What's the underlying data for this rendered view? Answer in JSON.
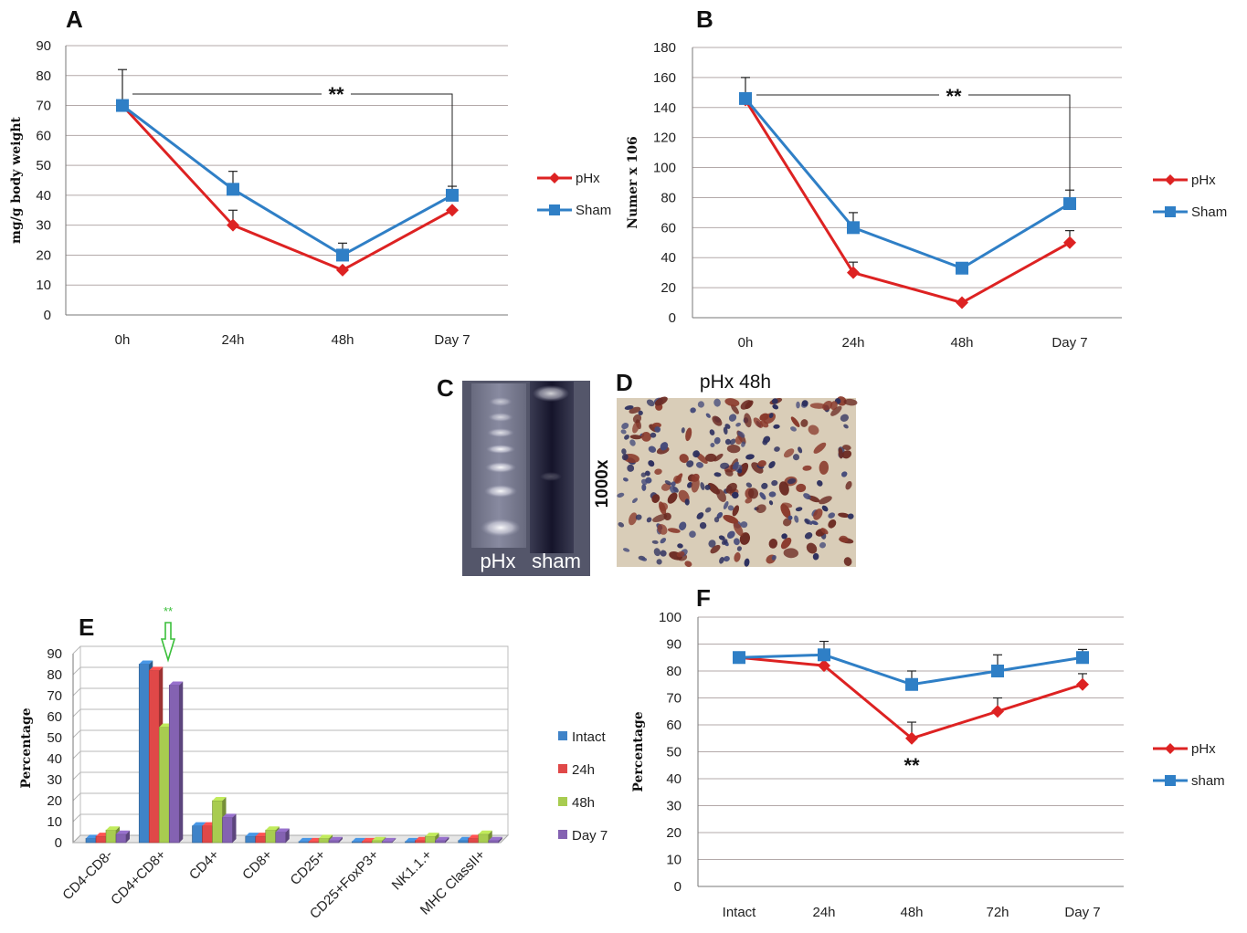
{
  "colors": {
    "red": "#dd2222",
    "blue": "#2f7fc6",
    "gel_bg": "#54566a",
    "intact": "#3f83c8",
    "h24": "#e04848",
    "h48": "#a8cc50",
    "day7": "#8462b2"
  },
  "panels": {
    "A": {
      "letter": "A",
      "sig": "**"
    },
    "B": {
      "letter": "B",
      "sig": "**"
    },
    "C": {
      "letter": "C",
      "lane1": "pHx",
      "lane2": "sham"
    },
    "D": {
      "letter": "D",
      "title": "pHx 48h",
      "magnification": "1000x"
    },
    "E": {
      "letter": "E",
      "sig": "**"
    },
    "F": {
      "letter": "F",
      "sig": "**"
    }
  },
  "chart_data": [
    {
      "id": "A",
      "type": "line",
      "categories": [
        "0h",
        "24h",
        "48h",
        "Day 7"
      ],
      "ylabel": "mg/g body weight",
      "ylim": [
        0,
        90
      ],
      "yticks": [
        "0",
        "10",
        "20",
        "30",
        "40",
        "50",
        "60",
        "70",
        "80",
        "90"
      ],
      "legend_position": "right",
      "grid": true,
      "series": [
        {
          "name": "pHx",
          "values": [
            70,
            30,
            15,
            35
          ],
          "errors": [
            0,
            5,
            0,
            0
          ]
        },
        {
          "name": "Sham",
          "values": [
            70,
            42,
            20,
            40
          ],
          "errors": [
            12,
            6,
            4,
            3
          ]
        }
      ]
    },
    {
      "id": "B",
      "type": "line",
      "categories": [
        "0h",
        "24h",
        "48h",
        "Day 7"
      ],
      "ylabel": "Numer x 106",
      "ylim": [
        0,
        180
      ],
      "yticks": [
        "0",
        "20",
        "40",
        "60",
        "80",
        "100",
        "120",
        "140",
        "160",
        "180"
      ],
      "legend_position": "right",
      "grid": true,
      "series": [
        {
          "name": "pHx",
          "values": [
            145,
            30,
            10,
            50
          ],
          "errors": [
            0,
            7,
            0,
            8
          ]
        },
        {
          "name": "Sham",
          "values": [
            146,
            60,
            33,
            76
          ],
          "errors": [
            14,
            10,
            0,
            9
          ]
        }
      ]
    },
    {
      "id": "E",
      "type": "bar",
      "categories": [
        "CD4-CD8-",
        "CD4+CD8+",
        "CD4+",
        "CD8+",
        "CD25+",
        "CD25+FoxP3+",
        "NK1.1.+",
        "MHC ClassII+"
      ],
      "ylabel": "Percentage",
      "ylim": [
        0,
        90
      ],
      "yticks": [
        "0",
        "10",
        "20",
        "30",
        "40",
        "50",
        "60",
        "70",
        "80",
        "90"
      ],
      "legend_position": "right",
      "grid": true,
      "series": [
        {
          "name": "Intact",
          "values": [
            2,
            85,
            8,
            3,
            0.5,
            0.5,
            0.5,
            1
          ]
        },
        {
          "name": "24h",
          "values": [
            3,
            82,
            8,
            3,
            0.5,
            0.5,
            1,
            2
          ]
        },
        {
          "name": "48h",
          "values": [
            6,
            55,
            20,
            6,
            2,
            1,
            3,
            4
          ]
        },
        {
          "name": "Day 7",
          "values": [
            4,
            75,
            12,
            5,
            1,
            0.5,
            1,
            1
          ]
        }
      ]
    },
    {
      "id": "F",
      "type": "line",
      "categories": [
        "Intact",
        "24h",
        "48h",
        "72h",
        "Day 7"
      ],
      "ylabel": "Percentage",
      "ylim": [
        0,
        100
      ],
      "yticks": [
        "0",
        "10",
        "20",
        "30",
        "40",
        "50",
        "60",
        "70",
        "80",
        "90",
        "100"
      ],
      "legend_position": "right",
      "grid": true,
      "series": [
        {
          "name": "pHx",
          "values": [
            85,
            82,
            55,
            65,
            75
          ],
          "errors": [
            0,
            0,
            6,
            5,
            4
          ]
        },
        {
          "name": "sham",
          "values": [
            85,
            86,
            75,
            80,
            85
          ],
          "errors": [
            0,
            5,
            5,
            6,
            3
          ]
        }
      ]
    }
  ]
}
